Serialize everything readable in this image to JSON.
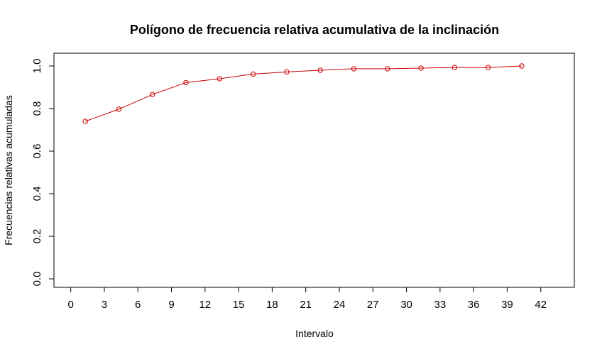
{
  "chart_data": {
    "type": "line",
    "title": "Polígono de frecuencia relativa acumulativa de la inclinación",
    "xlabel": "Intervalo",
    "ylabel": "Frecuencias relativas acumuladas",
    "xlim": [
      -1.5,
      45
    ],
    "ylim": [
      -0.04,
      1.06
    ],
    "x_ticks": [
      0,
      3,
      6,
      9,
      12,
      15,
      18,
      21,
      24,
      27,
      30,
      33,
      36,
      39,
      42
    ],
    "y_ticks": [
      0.0,
      0.2,
      0.4,
      0.6,
      0.8,
      1.0
    ],
    "y_tick_labels": [
      "0.0",
      "0.2",
      "0.4",
      "0.6",
      "0.8",
      "1.0"
    ],
    "grid": false,
    "legend": "none",
    "series": [
      {
        "color": "#cc0000",
        "marker": "open-circle",
        "x": [
          1.3,
          4.3,
          7.3,
          10.3,
          13.3,
          16.3,
          19.3,
          22.3,
          25.3,
          28.3,
          31.3,
          34.3,
          37.3,
          40.3
        ],
        "y": [
          0.74,
          0.797,
          0.866,
          0.922,
          0.94,
          0.962,
          0.972,
          0.98,
          0.987,
          0.987,
          0.99,
          0.993,
          0.993,
          1.0
        ]
      }
    ]
  }
}
